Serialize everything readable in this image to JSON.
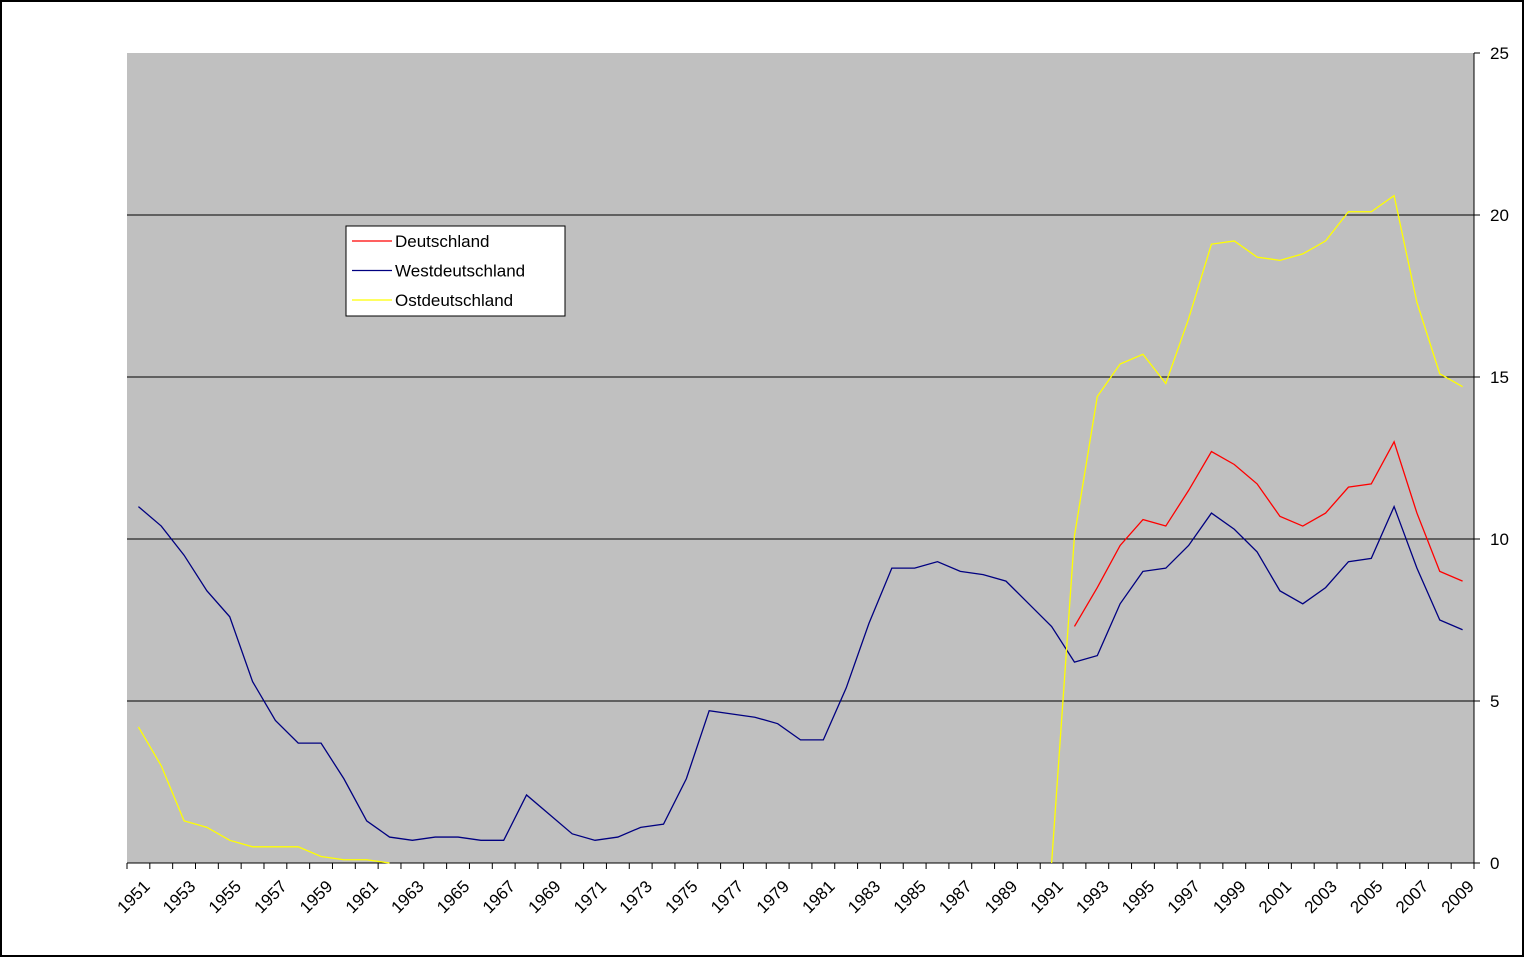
{
  "chart_data": {
    "type": "line",
    "categories": [
      "1951",
      null,
      "1953",
      null,
      "1955",
      null,
      "1957",
      null,
      "1959",
      null,
      "1961",
      null,
      "1963",
      null,
      "1965",
      null,
      "1967",
      null,
      "1969",
      null,
      "1971",
      null,
      "1973",
      null,
      "1975",
      null,
      "1977",
      null,
      "1979",
      null,
      "1981",
      null,
      "1983",
      null,
      "1985",
      null,
      "1987",
      null,
      "1989",
      null,
      "1991",
      null,
      "1993",
      null,
      "1995",
      null,
      "1997",
      null,
      "1999",
      null,
      "2001",
      null,
      "2003",
      null,
      "2005",
      null,
      "2007",
      null,
      "2009"
    ],
    "series": [
      {
        "name": "Deutschland",
        "color": "#ff0000",
        "values": [
          null,
          null,
          null,
          null,
          null,
          null,
          null,
          null,
          null,
          null,
          null,
          null,
          null,
          null,
          null,
          null,
          null,
          null,
          null,
          null,
          null,
          null,
          null,
          null,
          null,
          null,
          null,
          null,
          null,
          null,
          null,
          null,
          null,
          null,
          null,
          null,
          null,
          null,
          null,
          null,
          null,
          7.3,
          8.5,
          9.8,
          10.6,
          10.4,
          11.5,
          12.7,
          12.3,
          11.7,
          10.7,
          10.4,
          10.8,
          11.6,
          11.7,
          13.0,
          10.8,
          9.0,
          8.7
        ]
      },
      {
        "name": "Westdeutschland",
        "color": "#000080",
        "values": [
          11.0,
          10.4,
          9.5,
          8.4,
          7.6,
          5.6,
          4.4,
          3.7,
          3.7,
          2.6,
          1.3,
          0.8,
          0.7,
          0.8,
          0.8,
          0.7,
          0.7,
          2.1,
          1.5,
          0.9,
          0.7,
          0.8,
          1.1,
          1.2,
          2.6,
          4.7,
          4.6,
          4.5,
          4.3,
          3.8,
          3.8,
          5.4,
          7.4,
          9.1,
          9.1,
          9.3,
          9.0,
          8.9,
          8.7,
          8.0,
          7.3,
          6.2,
          6.4,
          8.0,
          9.0,
          9.1,
          9.8,
          10.8,
          10.3,
          9.6,
          8.4,
          8.0,
          8.5,
          9.3,
          9.4,
          11.0,
          9.1,
          7.5,
          7.2
        ]
      },
      {
        "name": "Ostdeutschland",
        "color": "#ffff00",
        "values": [
          4.2,
          3.0,
          1.3,
          1.1,
          0.7,
          0.5,
          0.5,
          0.5,
          0.2,
          0.1,
          0.1,
          0.0,
          null,
          null,
          null,
          null,
          null,
          null,
          null,
          null,
          null,
          null,
          null,
          null,
          null,
          null,
          null,
          null,
          null,
          null,
          null,
          null,
          null,
          null,
          null,
          null,
          null,
          null,
          null,
          null,
          0.0,
          10.1,
          14.4,
          15.4,
          15.7,
          14.8,
          16.8,
          19.1,
          19.2,
          18.7,
          18.6,
          18.8,
          19.2,
          20.1,
          20.1,
          20.6,
          17.3,
          15.1,
          14.7
        ]
      }
    ],
    "ylim": [
      0,
      25
    ],
    "yticks": [
      0,
      5,
      10,
      15,
      20,
      25
    ],
    "grid": true
  }
}
